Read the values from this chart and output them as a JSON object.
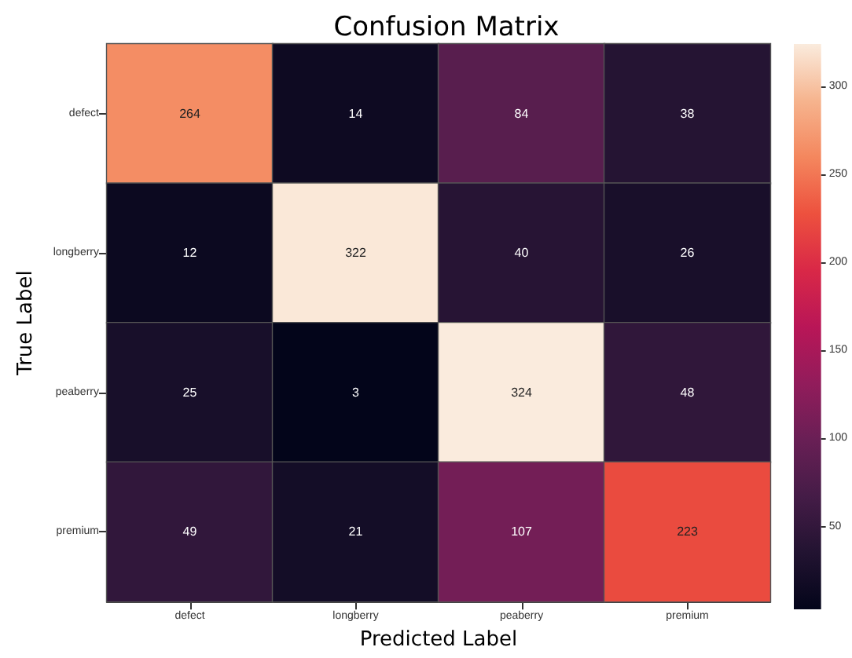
{
  "chart_data": {
    "type": "heatmap",
    "title": "Confusion Matrix",
    "xlabel": "Predicted Label",
    "ylabel": "True Label",
    "categories": [
      "defect",
      "longberry",
      "peaberry",
      "premium"
    ],
    "y_categories": [
      "defect",
      "longberry",
      "peaberry",
      "premium"
    ],
    "cells": [
      [
        264,
        14,
        84,
        38
      ],
      [
        12,
        322,
        40,
        26
      ],
      [
        25,
        3,
        324,
        48
      ],
      [
        49,
        21,
        107,
        223
      ]
    ],
    "data_labels": true,
    "clim": [
      3,
      324
    ],
    "cticks": [
      50,
      100,
      150,
      200,
      250,
      300
    ]
  }
}
